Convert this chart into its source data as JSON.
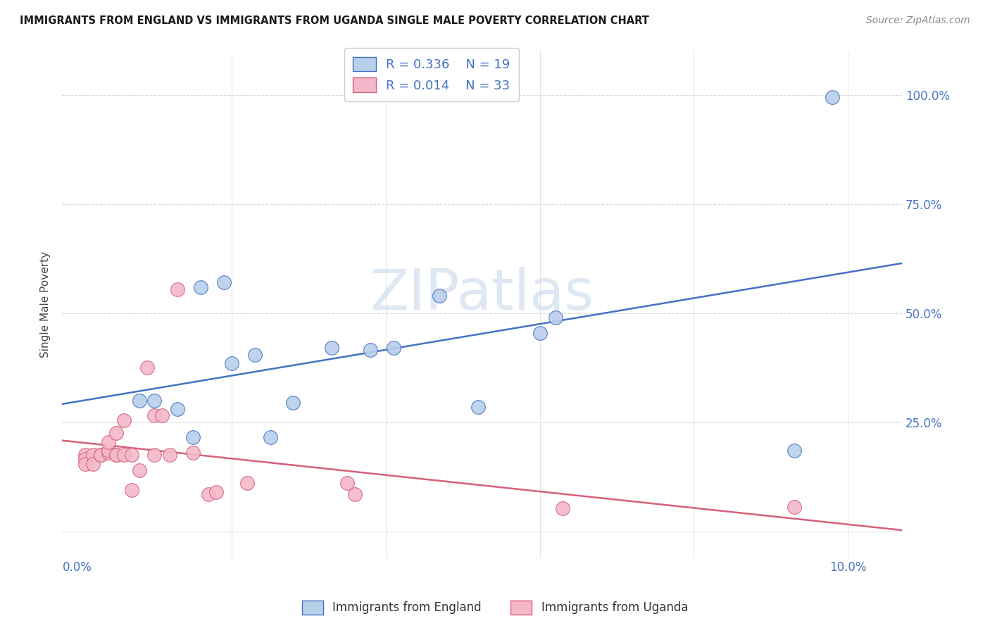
{
  "title": "IMMIGRANTS FROM ENGLAND VS IMMIGRANTS FROM UGANDA SINGLE MALE POVERTY CORRELATION CHART",
  "source": "Source: ZipAtlas.com",
  "ylabel": "Single Male Poverty",
  "y_ticks": [
    0.0,
    0.25,
    0.5,
    0.75,
    1.0
  ],
  "y_tick_labels": [
    "",
    "25.0%",
    "50.0%",
    "75.0%",
    "100.0%"
  ],
  "x_ticks": [
    0.0,
    0.02,
    0.04,
    0.06,
    0.08,
    0.1
  ],
  "x_tick_labels": [
    "0.0%",
    "",
    "",
    "",
    "",
    "10.0%"
  ],
  "xlim": [
    -0.002,
    0.107
  ],
  "ylim": [
    -0.06,
    1.1
  ],
  "england_R": 0.336,
  "england_N": 19,
  "uganda_R": 0.014,
  "uganda_N": 33,
  "england_color": "#b8d0ea",
  "england_line_color": "#4472c4",
  "uganda_color": "#f4b8ca",
  "uganda_line_color": "#d4607a",
  "england_x": [
    0.008,
    0.01,
    0.013,
    0.015,
    0.016,
    0.019,
    0.02,
    0.023,
    0.025,
    0.028,
    0.033,
    0.038,
    0.041,
    0.047,
    0.052,
    0.06,
    0.062,
    0.093,
    0.098
  ],
  "england_y": [
    0.3,
    0.3,
    0.28,
    0.215,
    0.56,
    0.57,
    0.385,
    0.405,
    0.215,
    0.295,
    0.42,
    0.415,
    0.42,
    0.54,
    0.285,
    0.455,
    0.49,
    0.185,
    0.995
  ],
  "uganda_x": [
    0.001,
    0.001,
    0.001,
    0.002,
    0.002,
    0.003,
    0.003,
    0.003,
    0.004,
    0.004,
    0.004,
    0.005,
    0.005,
    0.005,
    0.006,
    0.006,
    0.007,
    0.007,
    0.008,
    0.009,
    0.01,
    0.01,
    0.011,
    0.012,
    0.013,
    0.015,
    0.017,
    0.018,
    0.022,
    0.035,
    0.036,
    0.063,
    0.093
  ],
  "uganda_y": [
    0.175,
    0.165,
    0.155,
    0.175,
    0.155,
    0.175,
    0.175,
    0.175,
    0.18,
    0.185,
    0.205,
    0.175,
    0.175,
    0.225,
    0.255,
    0.175,
    0.095,
    0.175,
    0.14,
    0.375,
    0.175,
    0.265,
    0.265,
    0.175,
    0.555,
    0.18,
    0.085,
    0.09,
    0.11,
    0.11,
    0.085,
    0.052,
    0.055
  ],
  "watermark_text": "ZIPatlas",
  "watermark_color": "#c8d8ea",
  "background_color": "#ffffff",
  "grid_color": "#d8d8d8",
  "title_color": "#1a1a1a",
  "source_color": "#888888",
  "ylabel_color": "#444444",
  "tick_label_color": "#4472c4"
}
